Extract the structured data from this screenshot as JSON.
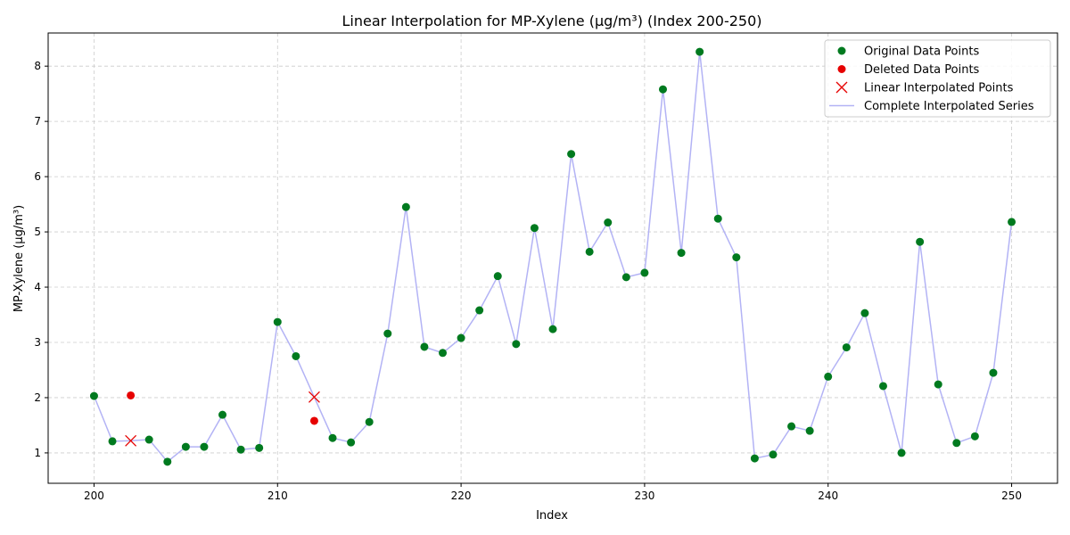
{
  "chart_data": {
    "type": "line",
    "title": "Linear Interpolation for MP-Xylene (µg/m³) (Index 200-250)",
    "xlabel": "Index",
    "ylabel": "MP-Xylene (µg/m³)",
    "xlim": [
      197.5,
      252.5
    ],
    "ylim": [
      0.45,
      8.6
    ],
    "xticks": [
      200,
      210,
      220,
      230,
      240,
      250
    ],
    "yticks": [
      1,
      2,
      3,
      4,
      5,
      6,
      7,
      8
    ],
    "grid": true,
    "legend_position": "top-right",
    "colors": {
      "original": "#007a1f",
      "deleted": "#e60000",
      "interpolated_marker": "#e60000",
      "line": "#b3b3f5",
      "grid": "#cccccc"
    },
    "series": [
      {
        "name": "Original Data Points",
        "marker": "circle",
        "x": [
          200,
          201,
          203,
          204,
          205,
          206,
          207,
          208,
          209,
          210,
          211,
          213,
          214,
          215,
          216,
          217,
          218,
          219,
          220,
          221,
          222,
          223,
          224,
          225,
          226,
          227,
          228,
          229,
          230,
          231,
          232,
          233,
          234,
          235,
          236,
          237,
          238,
          239,
          240,
          241,
          242,
          243,
          244,
          245,
          246,
          247,
          248,
          249,
          250
        ],
        "y": [
          2.03,
          1.21,
          1.24,
          0.84,
          1.11,
          1.11,
          1.69,
          1.06,
          1.09,
          3.37,
          2.75,
          1.27,
          1.19,
          1.56,
          3.16,
          5.45,
          2.92,
          2.81,
          3.08,
          3.58,
          4.2,
          2.97,
          5.07,
          3.24,
          6.41,
          4.64,
          5.17,
          4.18,
          4.26,
          7.58,
          4.62,
          8.26,
          5.24,
          4.54,
          0.9,
          0.97,
          1.48,
          1.4,
          2.38,
          2.91,
          3.53,
          2.21,
          1.0,
          4.82,
          2.24,
          1.18,
          1.3,
          2.45,
          5.18
        ]
      },
      {
        "name": "Deleted Data Points",
        "marker": "circle",
        "x": [
          202,
          212
        ],
        "y": [
          2.04,
          1.58
        ]
      },
      {
        "name": "Linear Interpolated Points",
        "marker": "x",
        "x": [
          202,
          212
        ],
        "y": [
          1.22,
          2.01
        ]
      },
      {
        "name": "Complete Interpolated Series",
        "marker": "line",
        "x": [
          200,
          201,
          202,
          203,
          204,
          205,
          206,
          207,
          208,
          209,
          210,
          211,
          212,
          213,
          214,
          215,
          216,
          217,
          218,
          219,
          220,
          221,
          222,
          223,
          224,
          225,
          226,
          227,
          228,
          229,
          230,
          231,
          232,
          233,
          234,
          235,
          236,
          237,
          238,
          239,
          240,
          241,
          242,
          243,
          244,
          245,
          246,
          247,
          248,
          249,
          250
        ],
        "y": [
          2.03,
          1.21,
          1.22,
          1.24,
          0.84,
          1.11,
          1.11,
          1.69,
          1.06,
          1.09,
          3.37,
          2.75,
          2.01,
          1.27,
          1.19,
          1.56,
          3.16,
          5.45,
          2.92,
          2.81,
          3.08,
          3.58,
          4.2,
          2.97,
          5.07,
          3.24,
          6.41,
          4.64,
          5.17,
          4.18,
          4.26,
          7.58,
          4.62,
          8.26,
          5.24,
          4.54,
          0.9,
          0.97,
          1.48,
          1.4,
          2.38,
          2.91,
          3.53,
          2.21,
          1.0,
          4.82,
          2.24,
          1.18,
          1.3,
          2.45,
          5.18
        ]
      }
    ]
  }
}
